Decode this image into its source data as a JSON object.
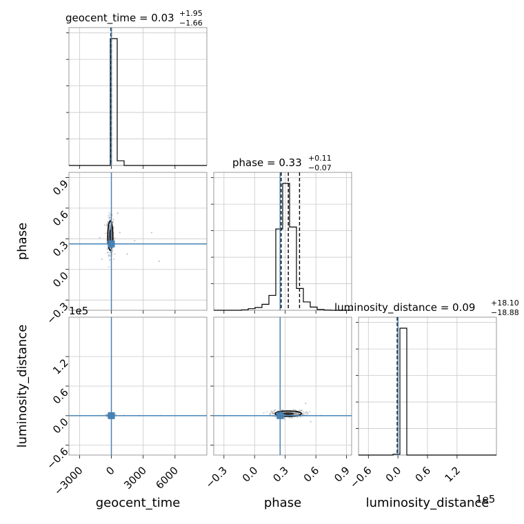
{
  "chart_data": {
    "type": "corner",
    "parameters": [
      "geocent_time",
      "phase",
      "luminosity_distance"
    ],
    "axis_labels": {
      "geocent_time": "geocent_time",
      "phase": "phase",
      "luminosity_distance": "luminosity_distance"
    },
    "titles": [
      {
        "param": "geocent_time",
        "text": "geocent_time = 0.03",
        "plus": "+1.95",
        "minus": "−1.66"
      },
      {
        "param": "phase",
        "text": "phase = 0.33",
        "plus": "+0.11",
        "minus": "−0.07"
      },
      {
        "param": "luminosity_distance",
        "text": "luminosity_distance = 0.09",
        "plus": "+18.10",
        "minus": "−18.88"
      }
    ],
    "ranges": {
      "geocent_time": [
        -4000,
        9000
      ],
      "phase": [
        -0.4,
        0.95
      ],
      "luminosity_distance": [
        -80000,
        200000
      ]
    },
    "ticks": {
      "geocent_time": [
        -3000,
        0,
        3000,
        6000
      ],
      "phase": [
        -0.3,
        0.0,
        0.3,
        0.6,
        0.9
      ],
      "luminosity_distance": [
        -60000,
        0,
        60000,
        120000
      ]
    },
    "tick_labels": {
      "geocent_time": [
        "−3000",
        "0",
        "3000",
        "6000"
      ],
      "phase": [
        "−0.3",
        "0.0",
        "0.3",
        "0.6",
        "0.9"
      ],
      "luminosity_distance": [
        "−0.6",
        "0.0",
        "0.6",
        "1.2"
      ]
    },
    "offset_text": "1e5",
    "truths": {
      "geocent_time": 0,
      "phase": 0.25,
      "luminosity_distance": 0
    },
    "truth_color": "#4682b4",
    "hist_color": "#000000",
    "quantiles": {
      "phase": [
        0.26,
        0.33,
        0.44
      ],
      "geocent_time": [
        -50,
        0
      ],
      "luminosity_distance": [
        -1500,
        0
      ]
    },
    "histograms": {
      "geocent_time": {
        "edges": [
          -4000,
          -3350,
          -2700,
          -2050,
          -1400,
          -750,
          -100,
          550,
          1200,
          1850,
          2500,
          3150,
          3800,
          4450,
          5100,
          5750,
          6400,
          7050,
          7700,
          8350,
          9000
        ],
        "counts": [
          0,
          0,
          0,
          0,
          0,
          0,
          945,
          35,
          0,
          0,
          0,
          0,
          0,
          0,
          0,
          0,
          0,
          0,
          0,
          0
        ]
      },
      "phase": {
        "edges": [
          -0.4,
          -0.3325,
          -0.265,
          -0.1975,
          -0.13,
          -0.0625,
          0.005,
          0.0725,
          0.14,
          0.2075,
          0.275,
          0.3425,
          0.41,
          0.4775,
          0.545,
          0.6125,
          0.68,
          0.7475,
          0.815,
          0.8825,
          0.95
        ],
        "counts": [
          0,
          0,
          0,
          0,
          2,
          8,
          14,
          30,
          75,
          410,
          640,
          420,
          110,
          42,
          16,
          4,
          1,
          0,
          0,
          0
        ]
      },
      "luminosity_distance": {
        "edges": [
          -80000,
          -66000,
          -52000,
          -38000,
          -24000,
          -10000,
          4000,
          18000,
          32000,
          46000,
          60000,
          74000,
          88000,
          102000,
          116000,
          130000,
          144000,
          158000,
          172000,
          186000,
          200000
        ],
        "counts": [
          0,
          0,
          0,
          0,
          0,
          3,
          470,
          0,
          0,
          0,
          0,
          0,
          0,
          0,
          0,
          0,
          0,
          0,
          0,
          0
        ]
      }
    },
    "scatter_2d": {
      "phase_vs_geocent_time": {
        "center": [
          -100,
          0.33
        ],
        "spread": [
          150,
          0.09
        ],
        "outliers": [
          [
            800,
            0.36
          ],
          [
            2200,
            0.28
          ],
          [
            3800,
            0.36
          ],
          [
            4500,
            0.08
          ],
          [
            1500,
            0.15
          ],
          [
            -1100,
            0.31
          ],
          [
            -900,
            0.1
          ],
          [
            600,
            0.55
          ]
        ]
      },
      "luminosity_distance_vs_geocent_time": {
        "center": [
          -50,
          1000
        ],
        "spread": [
          150,
          1500
        ],
        "outliers": [
          [
            4600,
            0
          ],
          [
            2600,
            0
          ],
          [
            1200,
            500
          ]
        ]
      },
      "luminosity_distance_vs_phase": {
        "center": [
          0.33,
          4000
        ],
        "spread": [
          0.08,
          3500
        ],
        "outliers": [
          [
            0.5,
            25000
          ],
          [
            0.55,
            -12000
          ],
          [
            0.65,
            0
          ]
        ]
      }
    }
  }
}
